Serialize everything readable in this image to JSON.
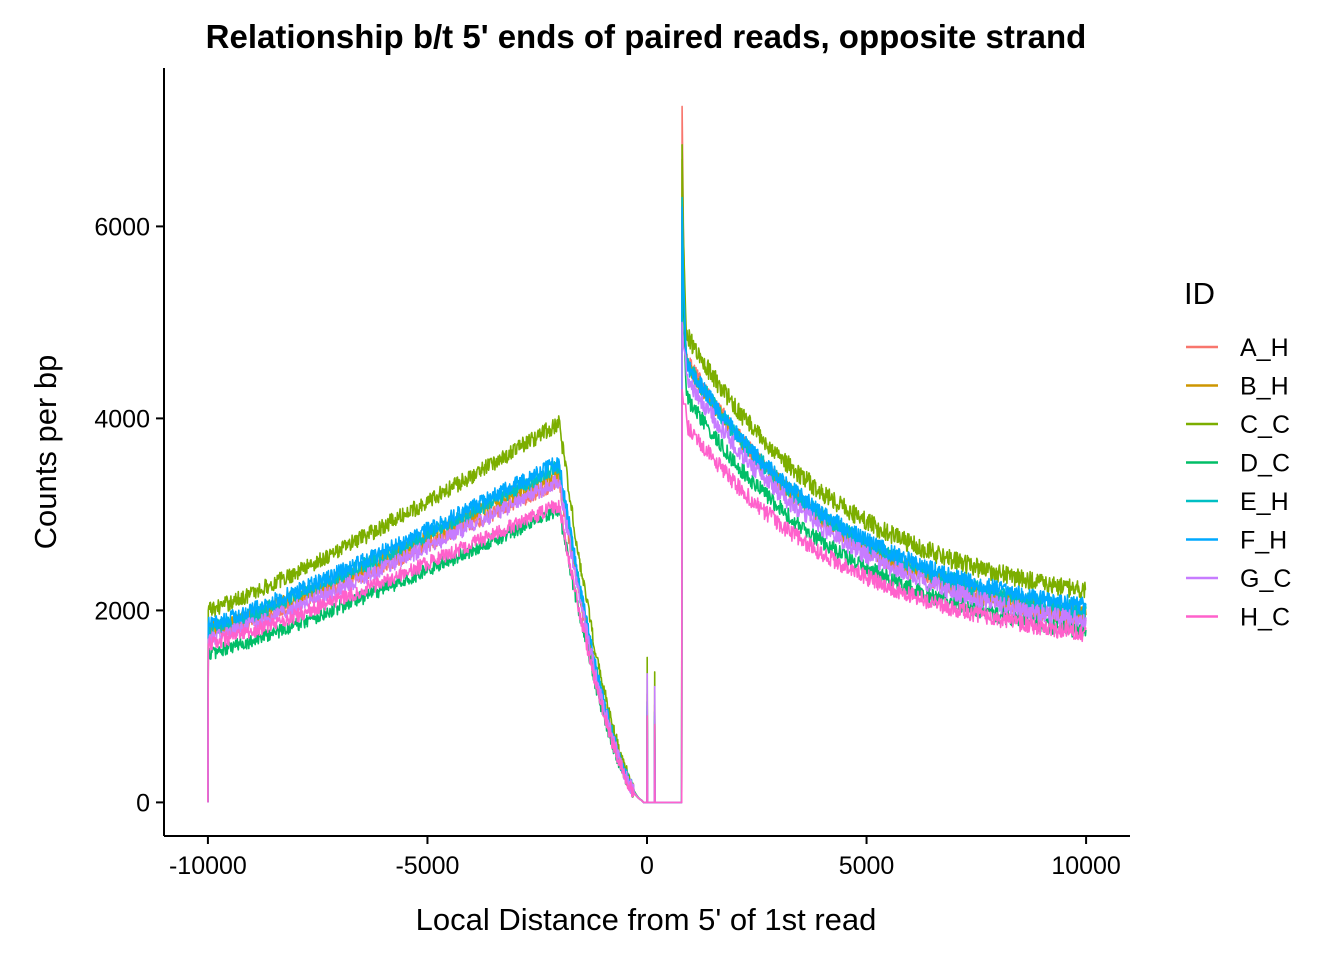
{
  "chart_data": {
    "type": "line",
    "title": "Relationship b/t 5' ends of paired reads, opposite strand",
    "xlabel": "Local Distance from 5' of 1st read",
    "ylabel": "Counts per bp",
    "xlim": [
      -11000,
      11000
    ],
    "ylim": [
      -350,
      7650
    ],
    "x_ticks": [
      -10000,
      -5000,
      0,
      5000,
      10000
    ],
    "x_tick_labels": [
      "-10000",
      "-5000",
      "0",
      "5000",
      "10000"
    ],
    "y_ticks": [
      0,
      2000,
      4000,
      6000
    ],
    "y_tick_labels": [
      "0",
      "2000",
      "4000",
      "6000"
    ],
    "grid": false,
    "legend": {
      "title": "ID",
      "position": "right"
    },
    "series": [
      {
        "name": "A_H",
        "color": "#F8766D",
        "base_left": 1750,
        "peak_left": 3350,
        "peak_right": 7250,
        "after_jump": 4700,
        "right_end": 1650,
        "noise": 160,
        "spike": 1130
      },
      {
        "name": "B_H",
        "color": "#CD9600",
        "base_left": 1800,
        "peak_left": 3450,
        "peak_right": 6700,
        "after_jump": 4650,
        "right_end": 1700,
        "noise": 160,
        "spike": 1050
      },
      {
        "name": "C_C",
        "color": "#7CAE00",
        "base_left": 2000,
        "peak_left": 3950,
        "peak_right": 6850,
        "after_jump": 4950,
        "right_end": 1950,
        "noise": 170,
        "spike": 1510
      },
      {
        "name": "D_C",
        "color": "#00BE67",
        "base_left": 1550,
        "peak_left": 3050,
        "peak_right": 6100,
        "after_jump": 4300,
        "right_end": 1550,
        "noise": 150,
        "spike": 950
      },
      {
        "name": "E_H",
        "color": "#00BFC4",
        "base_left": 1800,
        "peak_left": 3500,
        "peak_right": 6300,
        "after_jump": 4650,
        "right_end": 1750,
        "noise": 160,
        "spike": 1000
      },
      {
        "name": "F_H",
        "color": "#00A9FF",
        "base_left": 1850,
        "peak_left": 3550,
        "peak_right": 6200,
        "after_jump": 4650,
        "right_end": 1800,
        "noise": 160,
        "spike": 1050
      },
      {
        "name": "G_C",
        "color": "#C77CFF",
        "base_left": 1700,
        "peak_left": 3350,
        "peak_right": 5000,
        "after_jump": 4500,
        "right_end": 1650,
        "noise": 160,
        "spike": 1340
      },
      {
        "name": "H_C",
        "color": "#FF61CC",
        "base_left": 1650,
        "peak_left": 3100,
        "peak_right": 4300,
        "after_jump": 4000,
        "right_end": 1550,
        "noise": 150,
        "spike": 900
      }
    ]
  }
}
